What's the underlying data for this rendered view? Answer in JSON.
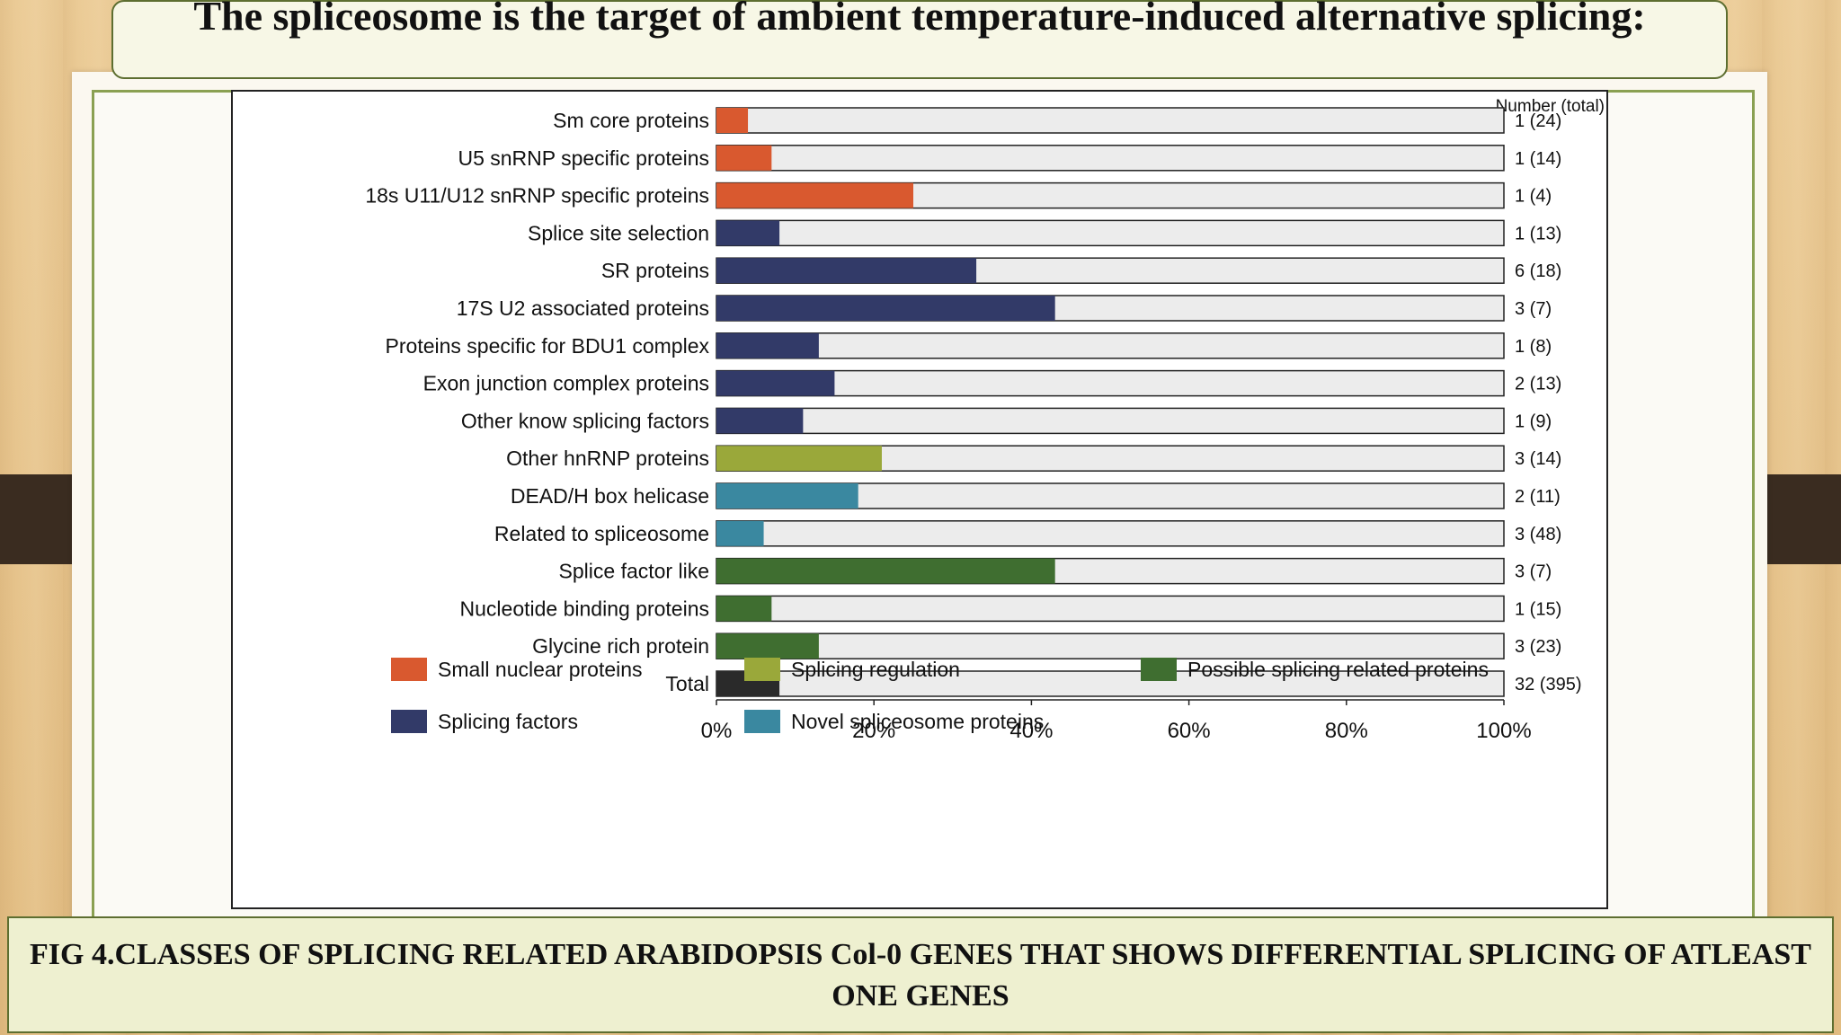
{
  "slide": {
    "title": "The spliceosome is the target of ambient temperature-induced alternative splicing:",
    "caption": "FIG 4.CLASSES OF SPLICING RELATED ARABIDOPSIS Col-0 GENES THAT SHOWS DIFFERENTIAL SPLICING OF ATLEAST ONE GENES"
  },
  "chart_data": {
    "type": "bar",
    "orientation": "horizontal",
    "stacked_on_total": true,
    "right_header": "Number (total)",
    "xlim": [
      0,
      100
    ],
    "xticks": [
      "0%",
      "20%",
      "40%",
      "60%",
      "80%",
      "100%"
    ],
    "categories": [
      {
        "label": "Sm core proteins",
        "percent": 4,
        "count": "1 (24)",
        "group": "Small nuclear proteins"
      },
      {
        "label": "U5 snRNP specific proteins",
        "percent": 7,
        "count": "1 (14)",
        "group": "Small nuclear proteins"
      },
      {
        "label": "18s U11/U12 snRNP specific proteins",
        "percent": 25,
        "count": "1 (4)",
        "group": "Small nuclear proteins"
      },
      {
        "label": "Splice site selection",
        "percent": 8,
        "count": "1 (13)",
        "group": "Splicing factors"
      },
      {
        "label": "SR proteins",
        "percent": 33,
        "count": "6 (18)",
        "group": "Splicing factors"
      },
      {
        "label": "17S U2 associated proteins",
        "percent": 43,
        "count": "3 (7)",
        "group": "Splicing factors"
      },
      {
        "label": "Proteins specific for BDU1 complex",
        "percent": 13,
        "count": "1 (8)",
        "group": "Splicing factors"
      },
      {
        "label": "Exon junction complex proteins",
        "percent": 15,
        "count": "2 (13)",
        "group": "Splicing factors"
      },
      {
        "label": "Other know splicing factors",
        "percent": 11,
        "count": "1 (9)",
        "group": "Splicing factors"
      },
      {
        "label": "Other hnRNP proteins",
        "percent": 21,
        "count": "3 (14)",
        "group": "Splicing regulation"
      },
      {
        "label": "DEAD/H box helicase",
        "percent": 18,
        "count": "2 (11)",
        "group": "Novel spliceosome proteins"
      },
      {
        "label": "Related to spliceosome",
        "percent": 6,
        "count": "3 (48)",
        "group": "Novel spliceosome proteins"
      },
      {
        "label": "Splice factor like",
        "percent": 43,
        "count": "3 (7)",
        "group": "Possible splicing related proteins"
      },
      {
        "label": "Nucleotide binding proteins",
        "percent": 7,
        "count": "1 (15)",
        "group": "Possible splicing related proteins"
      },
      {
        "label": "Glycine rich protein",
        "percent": 13,
        "count": "3 (23)",
        "group": "Possible splicing related proteins"
      },
      {
        "label": "Total",
        "percent": 8,
        "count": "32 (395)",
        "group": "Total"
      }
    ],
    "legend": [
      {
        "name": "Small nuclear proteins",
        "color": "#d9592f"
      },
      {
        "name": "Splicing regulation",
        "color": "#9aa83a"
      },
      {
        "name": "Possible splicing related proteins",
        "color": "#3f6e30"
      },
      {
        "name": "Splicing factors",
        "color": "#323a68"
      },
      {
        "name": "Novel spliceosome proteins",
        "color": "#3a88a0"
      }
    ],
    "colors": {
      "Small nuclear proteins": "#d9592f",
      "Splicing factors": "#323a68",
      "Splicing regulation": "#9aa83a",
      "Novel spliceosome proteins": "#3a88a0",
      "Possible splicing related proteins": "#3f6e30",
      "Total": "#2a2a2a",
      "background_bar": "#ececec"
    }
  }
}
